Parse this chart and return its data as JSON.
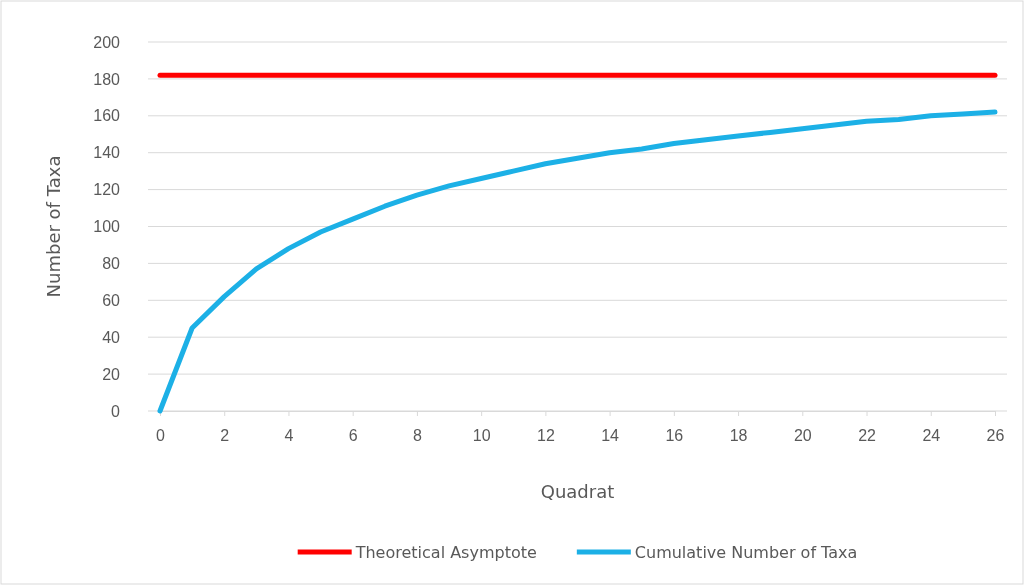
{
  "chart_data": {
    "type": "line",
    "xlabel": "Quadrat",
    "ylabel": "Number of Taxa",
    "xlim": [
      0,
      26
    ],
    "xticks": [
      0,
      2,
      4,
      6,
      8,
      10,
      12,
      14,
      16,
      18,
      20,
      22,
      24,
      26
    ],
    "ylim": [
      0,
      200
    ],
    "yticks": [
      0,
      20,
      40,
      60,
      80,
      100,
      120,
      140,
      160,
      180,
      200
    ],
    "grid": "y",
    "legend": "bottom",
    "marker": "none",
    "line_style": "solid",
    "series": [
      {
        "name": "Theoretical Asymptote",
        "color": "#ff0000",
        "x": [
          0,
          26
        ],
        "values": [
          182,
          182
        ]
      },
      {
        "name": "Cumulative Number of Taxa",
        "color": "#1cb0e6",
        "x": [
          0,
          1,
          2,
          3,
          4,
          5,
          6,
          7,
          8,
          9,
          10,
          11,
          12,
          13,
          14,
          15,
          16,
          17,
          18,
          19,
          20,
          21,
          22,
          23,
          24,
          25,
          26
        ],
        "values": [
          0,
          45,
          62,
          77,
          88,
          97,
          104,
          111,
          117,
          122,
          126,
          130,
          134,
          137,
          140,
          142,
          145,
          147,
          149,
          151,
          153,
          155,
          157,
          158,
          160,
          161,
          162
        ]
      }
    ]
  }
}
